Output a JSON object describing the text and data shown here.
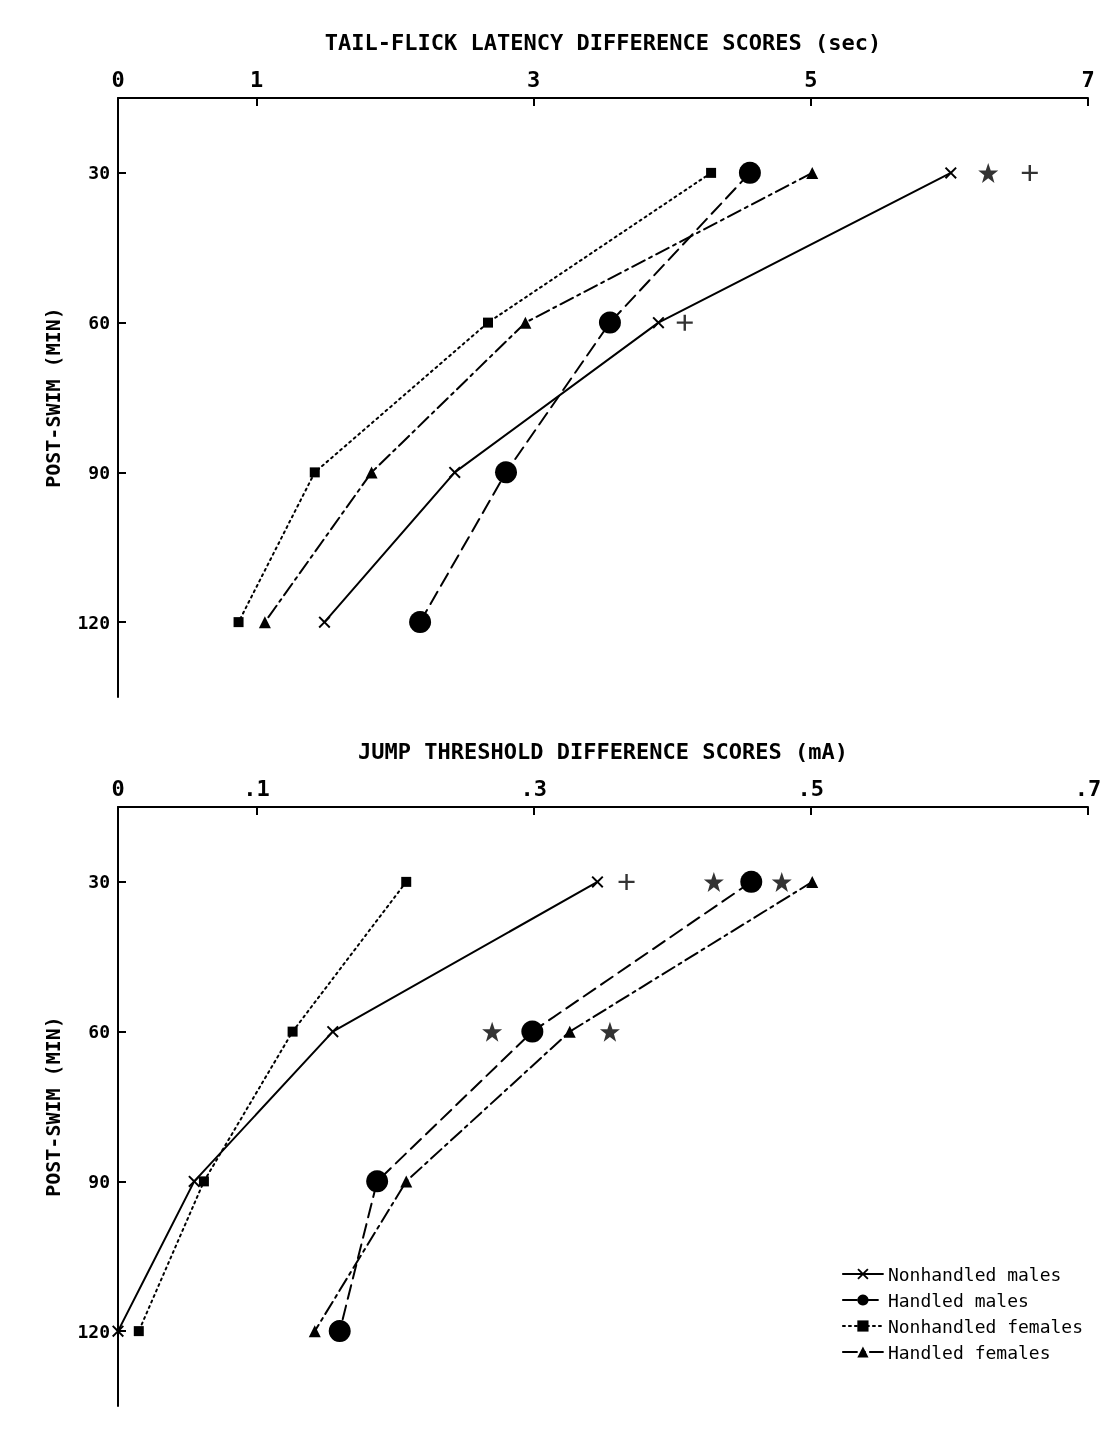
{
  "chart_data": [
    {
      "type": "line",
      "orientation": "horizontal",
      "xlabel": "TAIL-FLICK LATENCY DIFFERENCE SCORES (sec)",
      "ylabel": "POST-SWIM (MIN)",
      "categories": [
        "30",
        "60",
        "90",
        "120"
      ],
      "xlim": [
        0,
        7
      ],
      "xticks": [
        0,
        1,
        3,
        5,
        7
      ],
      "grid": false,
      "legend": false,
      "series": [
        {
          "color": "#000000",
          "marker": "cross",
          "line_style": "solid",
          "values": [
            6.01,
            3.9,
            2.43,
            1.49
          ]
        },
        {
          "color": "#000000",
          "marker": "circle",
          "line_style": "dashed",
          "values": [
            4.56,
            3.55,
            2.8,
            2.18
          ]
        },
        {
          "color": "#000000",
          "marker": "square",
          "line_style": "dotted",
          "values": [
            4.28,
            2.67,
            1.42,
            0.87
          ]
        },
        {
          "color": "#000000",
          "marker": "triangle",
          "line_style": "dashdot",
          "values": [
            5.01,
            2.94,
            1.83,
            1.06
          ]
        },
        {
          "type": "scatter",
          "color": "#000000",
          "marker": "star",
          "x": [
            "30"
          ],
          "values": [
            6.28
          ]
        },
        {
          "type": "scatter",
          "color": "#000000",
          "marker": "plus",
          "x": [
            "30",
            "60"
          ],
          "values": [
            6.58,
            4.09
          ]
        }
      ]
    },
    {
      "type": "line",
      "orientation": "horizontal",
      "xlabel": "JUMP THRESHOLD DIFFERENCE SCORES (mA)",
      "ylabel": "POST-SWIM (MIN)",
      "categories": [
        "30",
        "60",
        "90",
        "120"
      ],
      "xlim": [
        0,
        0.7
      ],
      "xticks": [
        0,
        {
          "value": 0.1,
          "label": ".1"
        },
        {
          "value": 0.3,
          "label": ".3"
        },
        {
          "value": 0.5,
          "label": ".5"
        },
        {
          "value": 0.7,
          "label": ".7"
        }
      ],
      "grid": false,
      "legend": "bottom right",
      "series": [
        {
          "name": "Nonhandled males",
          "color": "#000000",
          "marker": "cross",
          "line_style": "solid",
          "values": [
            0.346,
            0.155,
            0.055,
            0
          ]
        },
        {
          "name": "Handled males",
          "color": "#000000",
          "marker": "circle",
          "line_style": "dashed",
          "values": [
            0.457,
            0.299,
            0.187,
            0.16
          ]
        },
        {
          "name": "Nonhandled females",
          "color": "#000000",
          "marker": "square",
          "line_style": "dotted",
          "values": [
            0.208,
            0.126,
            0.062,
            0.015
          ]
        },
        {
          "name": "Handled females",
          "color": "#000000",
          "marker": "triangle",
          "line_style": "dashdot",
          "values": [
            0.501,
            0.326,
            0.208,
            0.142
          ]
        },
        {
          "type": "scatter",
          "color": "#000000",
          "marker": "star",
          "x": [
            "30",
            "30",
            "60",
            "60"
          ],
          "values": [
            0.43,
            0.479,
            0.27,
            0.355
          ]
        },
        {
          "type": "scatter",
          "color": "#000000",
          "marker": "plus",
          "x": [
            "30"
          ],
          "values": [
            0.367
          ]
        }
      ]
    }
  ]
}
